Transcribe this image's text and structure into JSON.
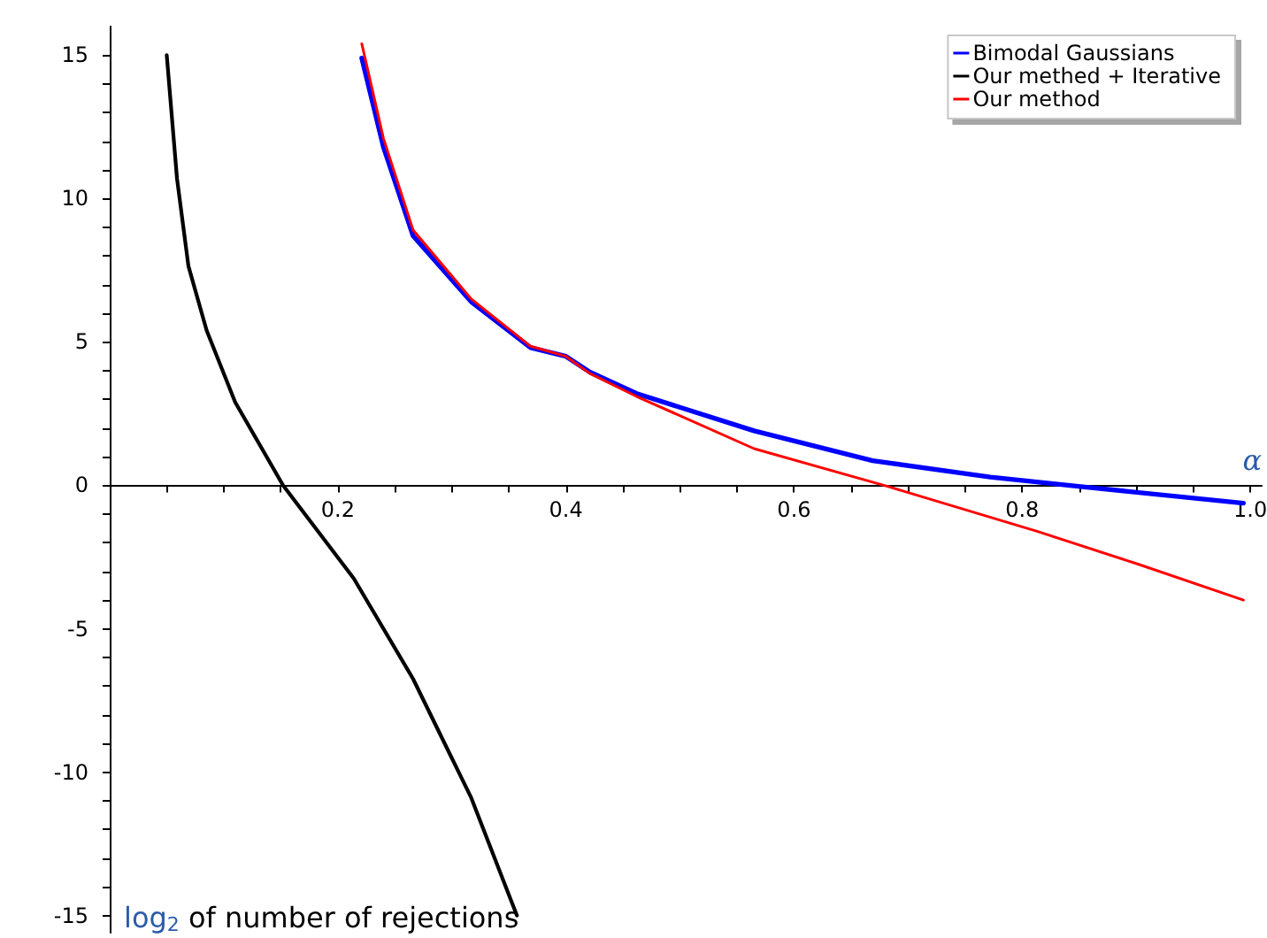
{
  "chart_data": {
    "type": "line",
    "xlabel": "α",
    "ylabel": "log$_{2}$ of number of rejections",
    "xlim": [
      0,
      1.01
    ],
    "ylim": [
      -15.6,
      16
    ],
    "xticks": [
      {
        "value": 0.05,
        "label": null
      },
      {
        "value": 0.1,
        "label": null
      },
      {
        "value": 0.15,
        "label": null
      },
      {
        "value": 0.2,
        "label": "0.2"
      },
      {
        "value": 0.25,
        "label": null
      },
      {
        "value": 0.3,
        "label": null
      },
      {
        "value": 0.35,
        "label": null
      },
      {
        "value": 0.4,
        "label": "0.4"
      },
      {
        "value": 0.45,
        "label": null
      },
      {
        "value": 0.5,
        "label": null
      },
      {
        "value": 0.55,
        "label": null
      },
      {
        "value": 0.6,
        "label": "0.6"
      },
      {
        "value": 0.65,
        "label": null
      },
      {
        "value": 0.7,
        "label": null
      },
      {
        "value": 0.75,
        "label": null
      },
      {
        "value": 0.8,
        "label": "0.8"
      },
      {
        "value": 0.85,
        "label": null
      },
      {
        "value": 0.9,
        "label": null
      },
      {
        "value": 0.95,
        "label": null
      },
      {
        "value": 1.0,
        "label": "1.0"
      }
    ],
    "yticks": [
      -15,
      {
        "value": -14,
        "label": null
      },
      {
        "value": -13,
        "label": null
      },
      {
        "value": -12,
        "label": null
      },
      {
        "value": -11,
        "label": null
      },
      -10,
      {
        "value": -9,
        "label": null
      },
      {
        "value": -8,
        "label": null
      },
      {
        "value": -7,
        "label": null
      },
      {
        "value": -6,
        "label": null
      },
      -5,
      {
        "value": -4,
        "label": null
      },
      {
        "value": -3,
        "label": null
      },
      {
        "value": -2,
        "label": null
      },
      {
        "value": -1,
        "label": null
      },
      0,
      {
        "value": 1,
        "label": null
      },
      {
        "value": 2,
        "label": null
      },
      {
        "value": 3,
        "label": null
      },
      {
        "value": 4,
        "label": null
      },
      5,
      {
        "value": 6,
        "label": null
      },
      {
        "value": 7,
        "label": null
      },
      {
        "value": 8,
        "label": null
      },
      {
        "value": 9,
        "label": null
      },
      10,
      {
        "value": 11,
        "label": null
      },
      {
        "value": 12,
        "label": null
      },
      {
        "value": 13,
        "label": null
      },
      {
        "value": 14,
        "label": null
      },
      15
    ],
    "legend": "top right",
    "marker": "none",
    "line_style": "solid",
    "series": [
      {
        "name": "Bimodal Gaussians",
        "color": "#0000ff",
        "x": [
          0.221,
          0.24,
          0.266,
          0.317,
          0.369,
          0.4,
          0.421,
          0.462,
          0.565,
          0.669,
          0.772,
          0.855,
          0.994
        ],
        "values": [
          14.9,
          11.8,
          8.7,
          6.4,
          4.8,
          4.5,
          3.95,
          3.2,
          1.9,
          0.86,
          0.29,
          -0.06,
          -0.62
        ]
      },
      {
        "name": "Our methed + Iterative",
        "color": "#000000",
        "x": [
          0.05,
          0.059,
          0.069,
          0.085,
          0.11,
          0.152,
          0.214,
          0.266,
          0.317,
          0.357
        ],
        "values": [
          15,
          10.7,
          7.65,
          5.4,
          2.9,
          0,
          -3.25,
          -6.75,
          -10.9,
          -15
        ]
      },
      {
        "name": "Our method",
        "color": "#ff0000",
        "x": [
          0.221,
          0.24,
          0.266,
          0.317,
          0.369,
          0.4,
          0.421,
          0.462,
          0.565,
          0.684,
          0.813,
          0.901,
          0.994
        ],
        "values": [
          15.4,
          12.1,
          8.9,
          6.5,
          4.85,
          4.5,
          3.9,
          3.1,
          1.28,
          -0.06,
          -1.6,
          -2.74,
          -4.0
        ]
      }
    ]
  }
}
